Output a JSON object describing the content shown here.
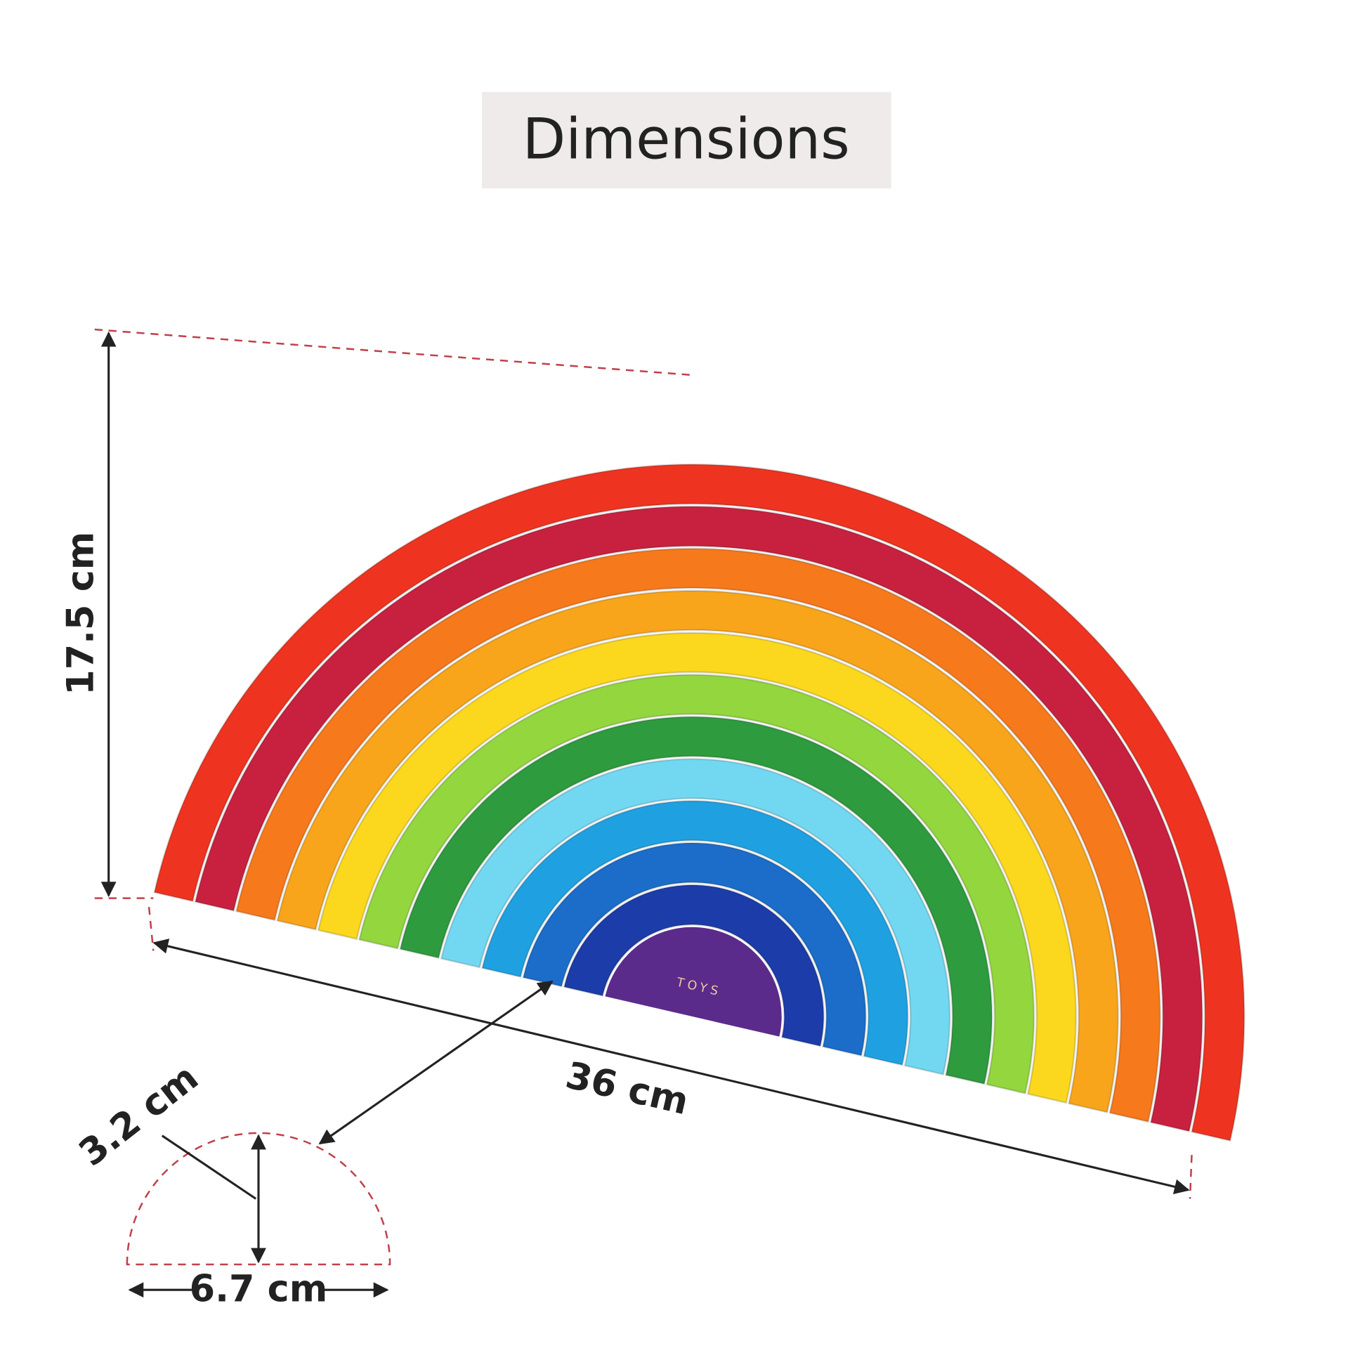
{
  "title": "Dimensions",
  "dimensions": {
    "height": "17.5 cm",
    "length": "36 cm",
    "thickness": "3.2 cm",
    "width": "6.7 cm"
  },
  "logo": {
    "subtitle": "TOYS"
  }
}
